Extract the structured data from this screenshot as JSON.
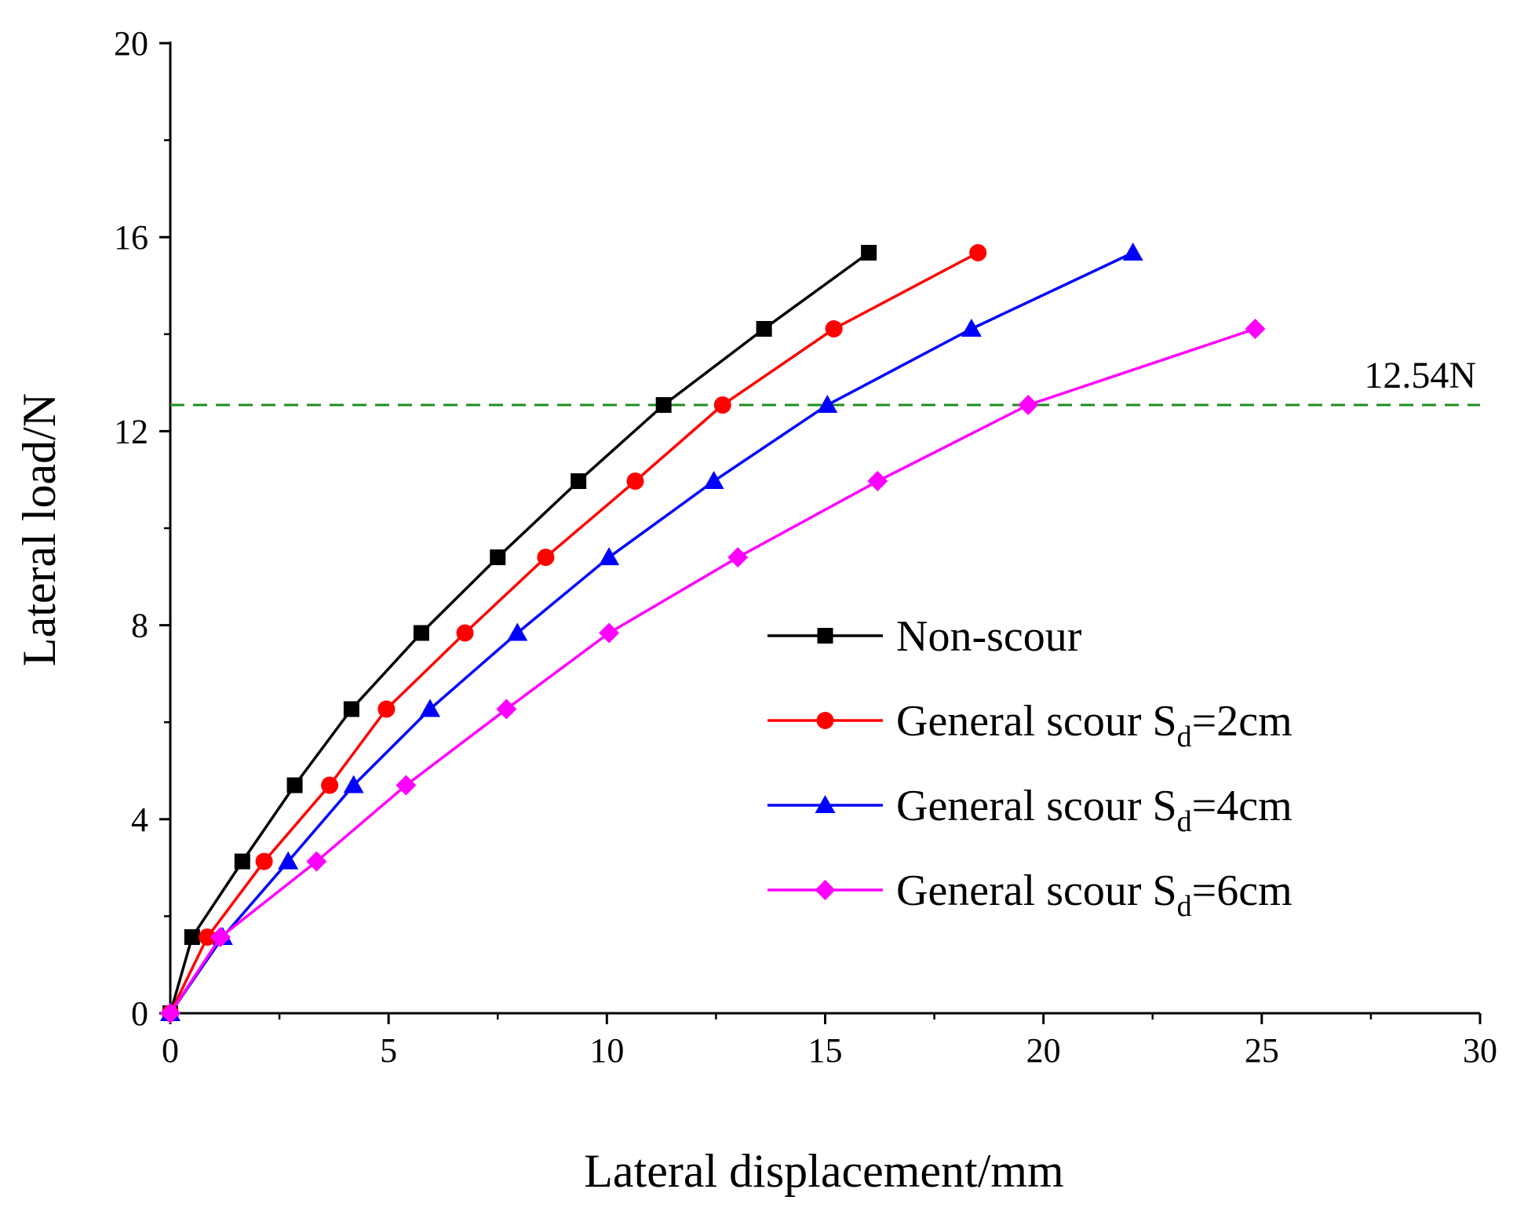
{
  "chart_data": {
    "type": "line",
    "title": "",
    "xlabel": "Lateral displacement/mm",
    "ylabel": "Lateral load/N",
    "xlim": [
      0,
      30
    ],
    "ylim": [
      0,
      20
    ],
    "x_ticks": [
      0,
      5,
      10,
      15,
      20,
      25,
      30
    ],
    "y_ticks": [
      0,
      4,
      8,
      12,
      16,
      20
    ],
    "x_tick_labels": [
      "0",
      "5",
      "10",
      "15",
      "20",
      "25",
      "30"
    ],
    "y_tick_labels": [
      "0",
      "4",
      "8",
      "12",
      "16",
      "20"
    ],
    "grid": false,
    "legend_position": "center-right",
    "series": [
      {
        "name": "Non-scour",
        "legend_prefix": "Non-scour",
        "legend_sub": "",
        "legend_suffix": "",
        "color": "#000000",
        "marker": "square",
        "x": [
          0,
          0.5,
          1.65,
          2.85,
          4.15,
          5.75,
          7.5,
          9.35,
          11.3,
          13.6,
          16.0
        ],
        "y": [
          0,
          1.57,
          3.13,
          4.7,
          6.27,
          7.84,
          9.4,
          10.97,
          12.54,
          14.11,
          15.68
        ]
      },
      {
        "name": "General scour Sd=2cm",
        "legend_prefix": "General scour S",
        "legend_sub": "d",
        "legend_suffix": "=2cm",
        "color": "#ff0000",
        "marker": "circle",
        "x": [
          0,
          0.85,
          2.15,
          3.65,
          4.95,
          6.75,
          8.6,
          10.65,
          12.65,
          15.2,
          18.5
        ],
        "y": [
          0,
          1.57,
          3.13,
          4.7,
          6.27,
          7.84,
          9.4,
          10.97,
          12.54,
          14.11,
          15.68
        ]
      },
      {
        "name": "General scour Sd=4cm",
        "legend_prefix": "General scour S",
        "legend_sub": "d",
        "legend_suffix": "=4cm",
        "color": "#0000ff",
        "marker": "triangle",
        "x": [
          0,
          1.2,
          2.7,
          4.2,
          5.95,
          7.95,
          10.05,
          12.45,
          15.05,
          18.35,
          22.05
        ],
        "y": [
          0,
          1.57,
          3.13,
          4.7,
          6.27,
          7.84,
          9.4,
          10.97,
          12.54,
          14.11,
          15.68
        ]
      },
      {
        "name": "General scour Sd=6cm",
        "legend_prefix": "General scour S",
        "legend_sub": "d",
        "legend_suffix": "=6cm",
        "color": "#ff00ff",
        "marker": "diamond",
        "x": [
          0,
          1.15,
          3.35,
          5.4,
          7.7,
          10.05,
          13.0,
          16.2,
          19.65,
          24.85
        ],
        "y": [
          0,
          1.57,
          3.13,
          4.7,
          6.27,
          7.84,
          9.4,
          10.97,
          12.54,
          14.11
        ]
      }
    ],
    "reference_line": {
      "y": 12.54,
      "label": "12.54N",
      "color": "#1e8c1e",
      "style": "dashed"
    }
  }
}
